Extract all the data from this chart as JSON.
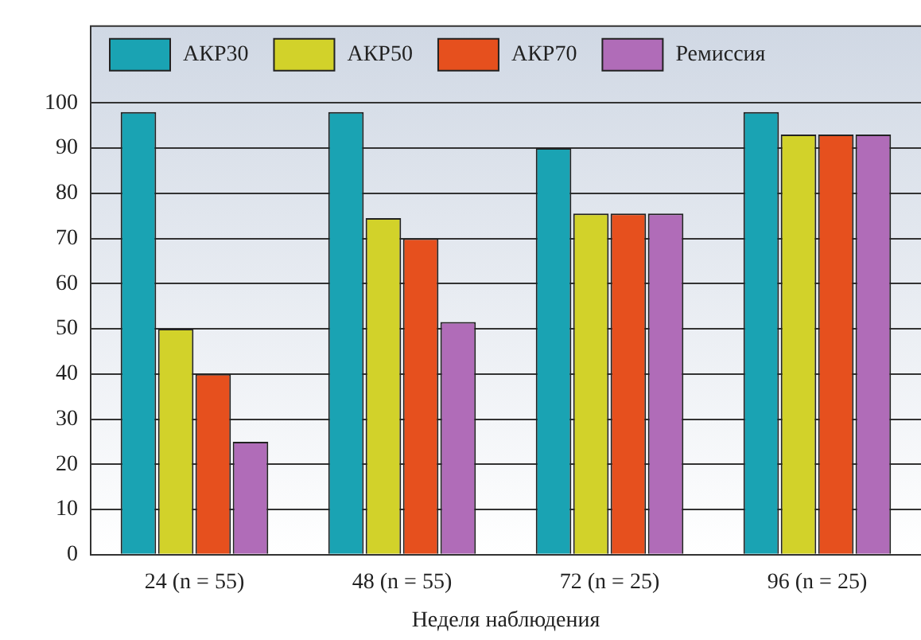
{
  "chart_data": {
    "type": "bar",
    "xlabel": "Неделя наблюдения",
    "categories": [
      "24 (n = 55)",
      "48 (n = 55)",
      "72 (n = 25)",
      "96 (n = 25)"
    ],
    "series": [
      {
        "name": "АКР30",
        "color": "#1aa3b3",
        "values": [
          98,
          98,
          90,
          98
        ]
      },
      {
        "name": "АКР50",
        "color": "#d2d22a",
        "values": [
          50,
          74.5,
          75.5,
          93
        ]
      },
      {
        "name": "АКР70",
        "color": "#e6501e",
        "values": [
          40,
          70,
          75.5,
          93
        ]
      },
      {
        "name": "Ремиссия",
        "color": "#b06cb8",
        "values": [
          25,
          51.5,
          75.5,
          93
        ]
      }
    ],
    "ylim": [
      0,
      117
    ],
    "yticks": [
      0,
      10,
      20,
      30,
      40,
      50,
      60,
      70,
      80,
      90,
      100
    ],
    "grid": "y",
    "legend": "top"
  }
}
